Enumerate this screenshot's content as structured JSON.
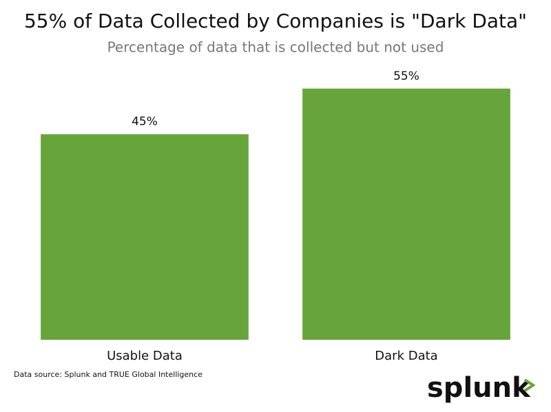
{
  "chart_data": {
    "type": "bar",
    "title": "55% of Data Collected by Companies is \"Dark Data\"",
    "subtitle": "Percentage of data that is collected but not used",
    "categories": [
      "Usable Data",
      "Dark Data"
    ],
    "values": [
      45,
      55
    ],
    "value_labels": [
      "45%",
      "55%"
    ],
    "color": "#67a53a",
    "source": "Data source: Splunk and TRUE Global Intelligence",
    "logo": "splunk"
  }
}
